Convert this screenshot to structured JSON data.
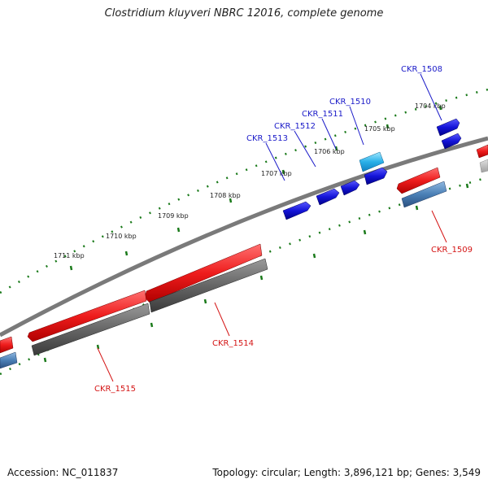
{
  "title": "Clostridium kluyveri NBRC 12016, complete genome",
  "footer": {
    "accession": "Accession: NC_011837",
    "summary": "Topology: circular; Length: 3,896,121 bp; Genes: 3,549"
  },
  "colors": {
    "backbone": "#7a7a7a",
    "gene_blue": "#1414d8",
    "gene_cyan": "#2ab0e8",
    "gene_red": "#ee1c1c",
    "gene_gray": "#666666",
    "gene_steel": "#4a7fb5",
    "tick_green": "#1a7a1a",
    "label_blue": "#1a1ac8",
    "label_red": "#d41414"
  },
  "scale_labels": [
    "1704 kbp",
    "1705 kbp",
    "1706 kbp",
    "1707 kbp",
    "1708 kbp",
    "1709 kbp",
    "1710 kbp",
    "1711 kbp"
  ],
  "gene_labels": [
    {
      "name": "CKR_1508",
      "color": "blue"
    },
    {
      "name": "CKR_1510",
      "color": "blue"
    },
    {
      "name": "CKR_1511",
      "color": "blue"
    },
    {
      "name": "CKR_1512",
      "color": "blue"
    },
    {
      "name": "CKR_1513",
      "color": "blue"
    },
    {
      "name": "CKR_1509",
      "color": "red"
    },
    {
      "name": "CKR_1514",
      "color": "red"
    },
    {
      "name": "CKR_1515",
      "color": "red"
    }
  ]
}
